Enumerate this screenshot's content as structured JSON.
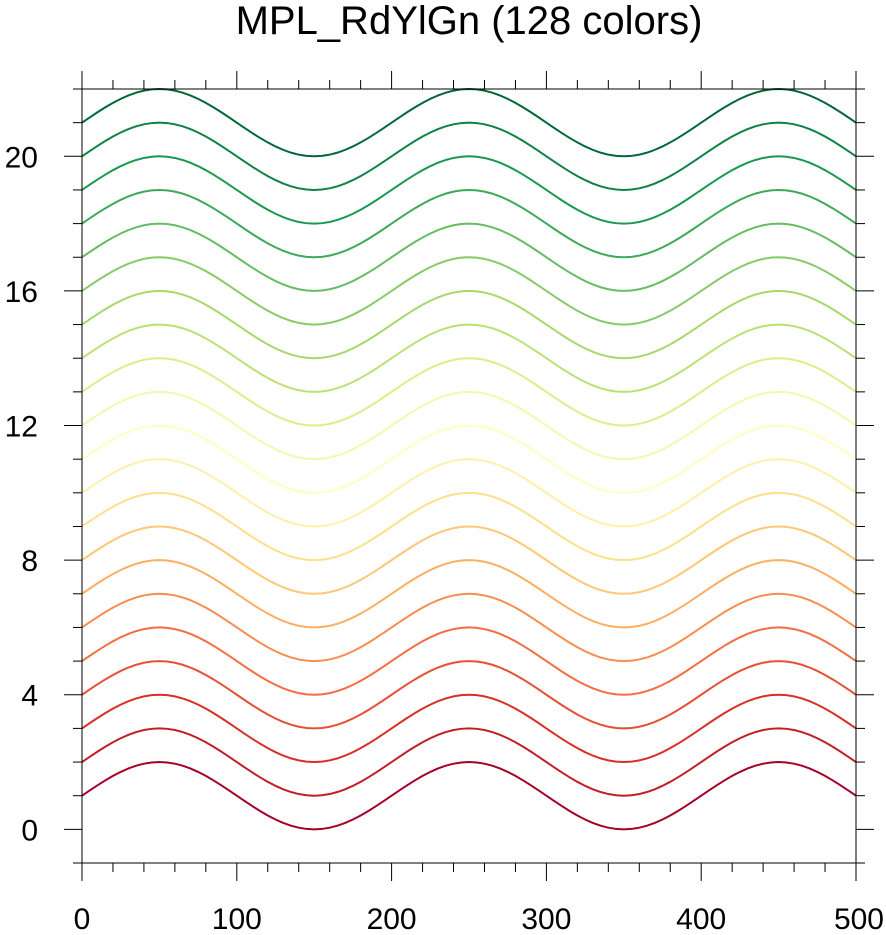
{
  "chart_data": {
    "type": "line",
    "title": "MPL_RdYlGn (128 colors)",
    "xlabel": "",
    "ylabel": "",
    "xlim": [
      0,
      500
    ],
    "ylim": [
      -1,
      22
    ],
    "x_major_ticks": [
      0,
      100,
      200,
      300,
      400,
      500
    ],
    "x_tick_labels": [
      "0",
      "100",
      "200",
      "300",
      "400",
      "500"
    ],
    "x_minor_step": 20,
    "y_major_ticks": [
      0,
      4,
      8,
      12,
      16,
      20
    ],
    "y_tick_labels": [
      "0",
      "4",
      "8",
      "12",
      "16",
      "20"
    ],
    "y_minor_step": 1,
    "grid": false,
    "legend": "none",
    "curve_model": {
      "form": "y = offset + 1 + sin(2*pi*x/200)",
      "x_start": 0,
      "x_end": 500,
      "x_step": 5
    },
    "series": [
      {
        "offset": 0,
        "color": "#a50026"
      },
      {
        "offset": 1,
        "color": "#c11f27"
      },
      {
        "offset": 2,
        "color": "#d73027"
      },
      {
        "offset": 3,
        "color": "#e65036"
      },
      {
        "offset": 4,
        "color": "#f46d43"
      },
      {
        "offset": 5,
        "color": "#f88d51"
      },
      {
        "offset": 6,
        "color": "#fcae61"
      },
      {
        "offset": 7,
        "color": "#fdc877"
      },
      {
        "offset": 8,
        "color": "#fee08b"
      },
      {
        "offset": 9,
        "color": "#fff0a8"
      },
      {
        "offset": 10,
        "color": "#ffffbf"
      },
      {
        "offset": 11,
        "color": "#f2f9ad"
      },
      {
        "offset": 12,
        "color": "#d9ef8b"
      },
      {
        "offset": 13,
        "color": "#bbe176"
      },
      {
        "offset": 14,
        "color": "#a6d96a"
      },
      {
        "offset": 15,
        "color": "#87cb67"
      },
      {
        "offset": 16,
        "color": "#66bd63"
      },
      {
        "offset": 17,
        "color": "#3ea958"
      },
      {
        "offset": 18,
        "color": "#1a9850"
      },
      {
        "offset": 19,
        "color": "#0e8245"
      },
      {
        "offset": 20,
        "color": "#006837"
      }
    ]
  }
}
